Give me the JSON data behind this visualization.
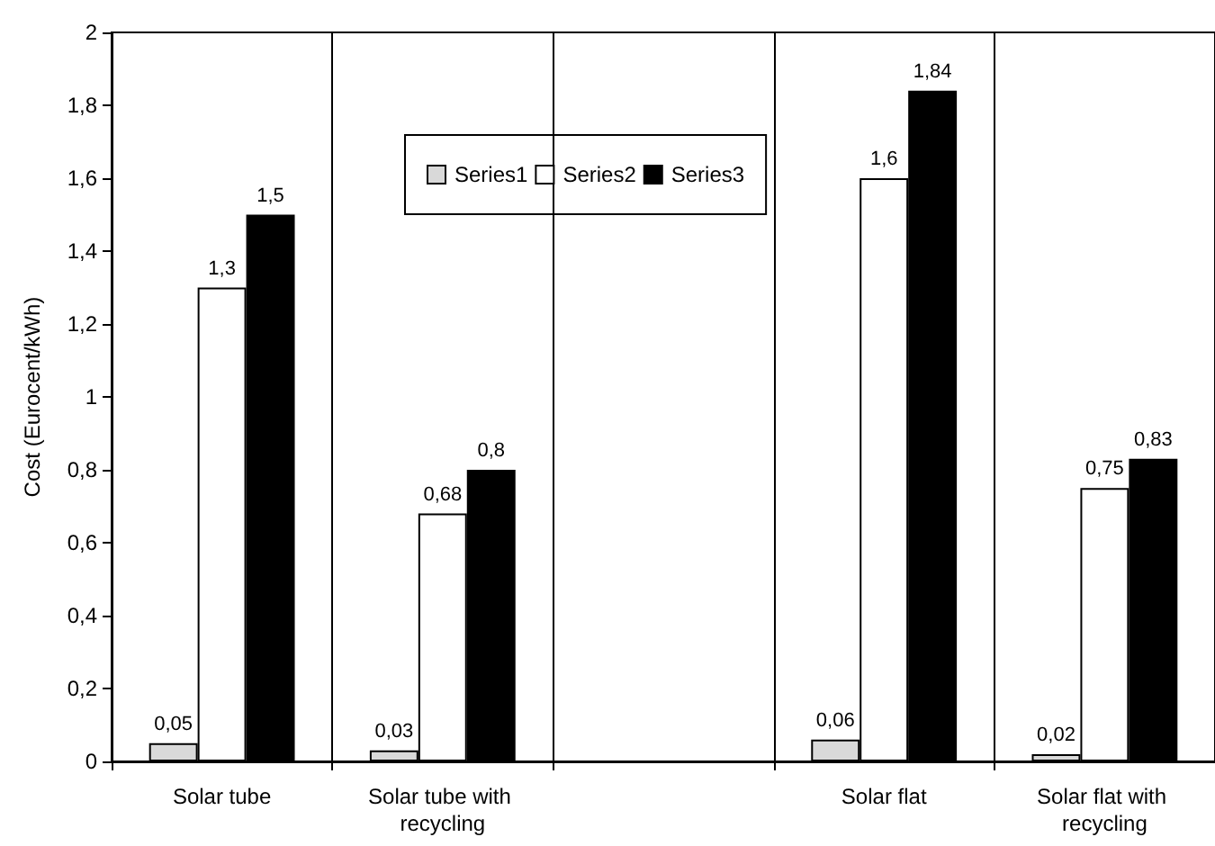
{
  "chart_data": {
    "type": "bar",
    "ylabel": "Cost (Eurocent/kWh)",
    "categories": [
      "Solar tube",
      "Solar tube with recycling",
      null,
      "Solar flat",
      "Solar flat with recycling"
    ],
    "series": [
      {
        "name": "Series1",
        "color": "#d9d9d9",
        "values": [
          0.05,
          0.03,
          null,
          0.06,
          0.02
        ],
        "value_labels": [
          "0,05",
          "0,03",
          null,
          "0,06",
          "0,02"
        ]
      },
      {
        "name": "Series2",
        "color": "#ffffff",
        "values": [
          1.3,
          0.68,
          null,
          1.6,
          0.75
        ],
        "value_labels": [
          "1,3",
          "0,68",
          null,
          "1,6",
          "0,75"
        ]
      },
      {
        "name": "Series3",
        "color": "#000000",
        "values": [
          1.5,
          0.8,
          null,
          1.84,
          0.83
        ],
        "value_labels": [
          "1,5",
          "0,8",
          null,
          "1,84",
          "0,83"
        ]
      }
    ],
    "ylim": [
      0,
      2
    ],
    "yticks": [
      0,
      {
        "value": 0.2,
        "label": "0,2"
      },
      {
        "value": 0.4,
        "label": "0,4"
      },
      {
        "value": 0.6,
        "label": "0,6"
      },
      {
        "value": 0.8,
        "label": "0,8"
      },
      1,
      {
        "value": 1.2,
        "label": "1,2"
      },
      {
        "value": 1.4,
        "label": "1,4"
      },
      {
        "value": 1.6,
        "label": "1,6"
      },
      {
        "value": 1.8,
        "label": "1,8"
      },
      2
    ],
    "grid": "x",
    "legend": "top"
  }
}
